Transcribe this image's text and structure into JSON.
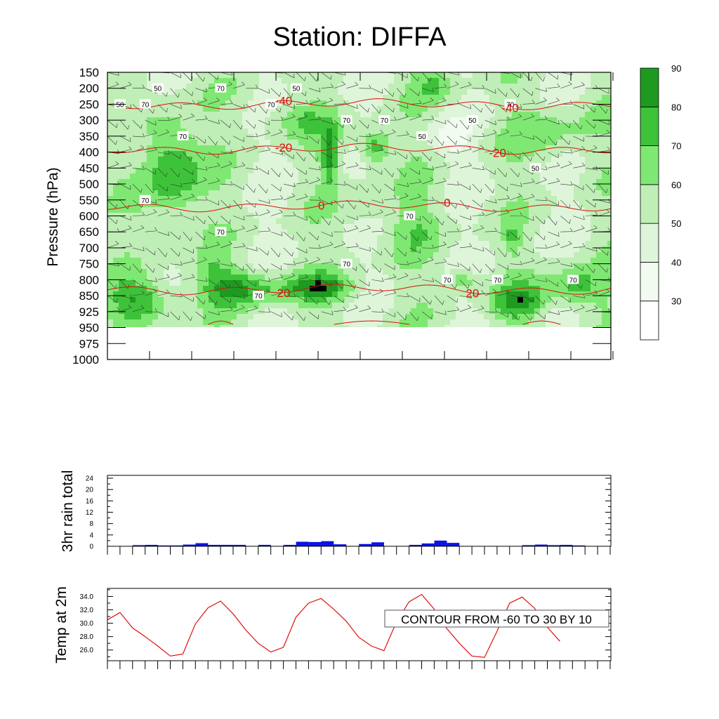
{
  "page_title": "Station: DIFFA",
  "colors": {
    "bins": [
      "#ffffff",
      "#f2fbf0",
      "#dff5da",
      "#bfeeb6",
      "#7fe872",
      "#3ec23a",
      "#1e9a20"
    ],
    "temp_contour": "#e01010",
    "rain_bar": "#0a14e6",
    "temp_line": "#e01010",
    "line": "#000000"
  },
  "chart_data": [
    {
      "id": "meteogram-cross-section",
      "type": "heatmap",
      "title": "Station: DIFFA",
      "ylabel": "Pressure (hPa)",
      "xlabel": "",
      "y_levels": [
        150,
        200,
        250,
        300,
        350,
        400,
        450,
        500,
        550,
        600,
        650,
        700,
        750,
        800,
        850,
        925,
        950,
        975,
        1000
      ],
      "n_times": 40,
      "x_tick_count": 13,
      "fill_variable": "relative humidity (%)",
      "colorbar": {
        "thresholds": [
          30,
          40,
          50,
          60,
          70,
          80,
          90
        ],
        "tick_labels": [
          "30",
          "40",
          "50",
          "60",
          "70",
          "80",
          "90"
        ]
      },
      "humidity_contour_labels": [
        {
          "t": 1,
          "p": 250,
          "v": "50"
        },
        {
          "t": 3,
          "p": 250,
          "v": "70"
        },
        {
          "t": 4,
          "p": 200,
          "v": "50"
        },
        {
          "t": 6,
          "p": 350,
          "v": "70"
        },
        {
          "t": 9,
          "p": 200,
          "v": "70"
        },
        {
          "t": 13,
          "p": 250,
          "v": "70"
        },
        {
          "t": 15,
          "p": 200,
          "v": "50"
        },
        {
          "t": 19,
          "p": 300,
          "v": "70"
        },
        {
          "t": 22,
          "p": 300,
          "v": "70"
        },
        {
          "t": 25,
          "p": 350,
          "v": "50"
        },
        {
          "t": 29,
          "p": 300,
          "v": "50"
        },
        {
          "t": 32,
          "p": 250,
          "v": "70"
        },
        {
          "t": 34,
          "p": 450,
          "v": "50"
        },
        {
          "t": 3,
          "p": 550,
          "v": "70"
        },
        {
          "t": 9,
          "p": 650,
          "v": "70"
        },
        {
          "t": 12,
          "p": 850,
          "v": "70"
        },
        {
          "t": 19,
          "p": 750,
          "v": "70"
        },
        {
          "t": 24,
          "p": 600,
          "v": "70"
        },
        {
          "t": 27,
          "p": 800,
          "v": "70"
        },
        {
          "t": 31,
          "p": 800,
          "v": "70"
        },
        {
          "t": 37,
          "p": 800,
          "v": "70"
        }
      ],
      "temp_contours": [
        {
          "label": "-40",
          "base_p": 250,
          "label_t": [
            14,
            32
          ]
        },
        {
          "label": "-20",
          "base_p": 390,
          "label_t": [
            14,
            31
          ]
        },
        {
          "label": "0",
          "base_p": 570,
          "label_t": [
            17,
            27
          ]
        },
        {
          "label": "20",
          "base_p": 830,
          "label_t": [
            14,
            29
          ]
        }
      ]
    },
    {
      "id": "rain-chart",
      "type": "bar",
      "ylabel": "3hr rain total",
      "yticks": [
        0,
        4,
        8,
        12,
        16,
        20,
        24
      ],
      "ylim": [
        0,
        25
      ],
      "values": [
        0,
        0.4,
        0.5,
        0.3,
        0.3,
        0.6,
        1.1,
        0.5,
        0.5,
        0.5,
        0,
        0.5,
        0,
        0.5,
        1.6,
        1.5,
        1.8,
        0.7,
        0,
        0.8,
        1.4,
        0,
        0,
        0.5,
        1,
        2,
        1.2,
        0,
        0,
        0,
        0,
        0,
        0.4,
        0.6,
        0.4,
        0.5,
        0.3,
        0,
        0,
        0,
        0
      ]
    },
    {
      "id": "temp-chart",
      "type": "line",
      "ylabel": "Temp at 2m",
      "yticks": [
        "26.0",
        "28.0",
        "30.0",
        "32.0",
        "34.0"
      ],
      "ylim": [
        24.4,
        35.2
      ],
      "values": [
        30.5,
        31.6,
        29.3,
        28.0,
        26.6,
        25.1,
        25.4,
        29.9,
        32.3,
        33.3,
        31.4,
        29.0,
        27.0,
        25.7,
        26.4,
        30.9,
        33.0,
        33.7,
        32.1,
        30.3,
        27.9,
        26.6,
        25.9,
        30.2,
        33.2,
        34.3,
        32.1,
        29.2,
        27.0,
        25.1,
        24.9,
        28.8,
        33.0,
        33.9,
        32.2,
        29.4,
        27.3
      ],
      "annotation": "CONTOUR FROM -60 TO 30 BY 10"
    }
  ]
}
